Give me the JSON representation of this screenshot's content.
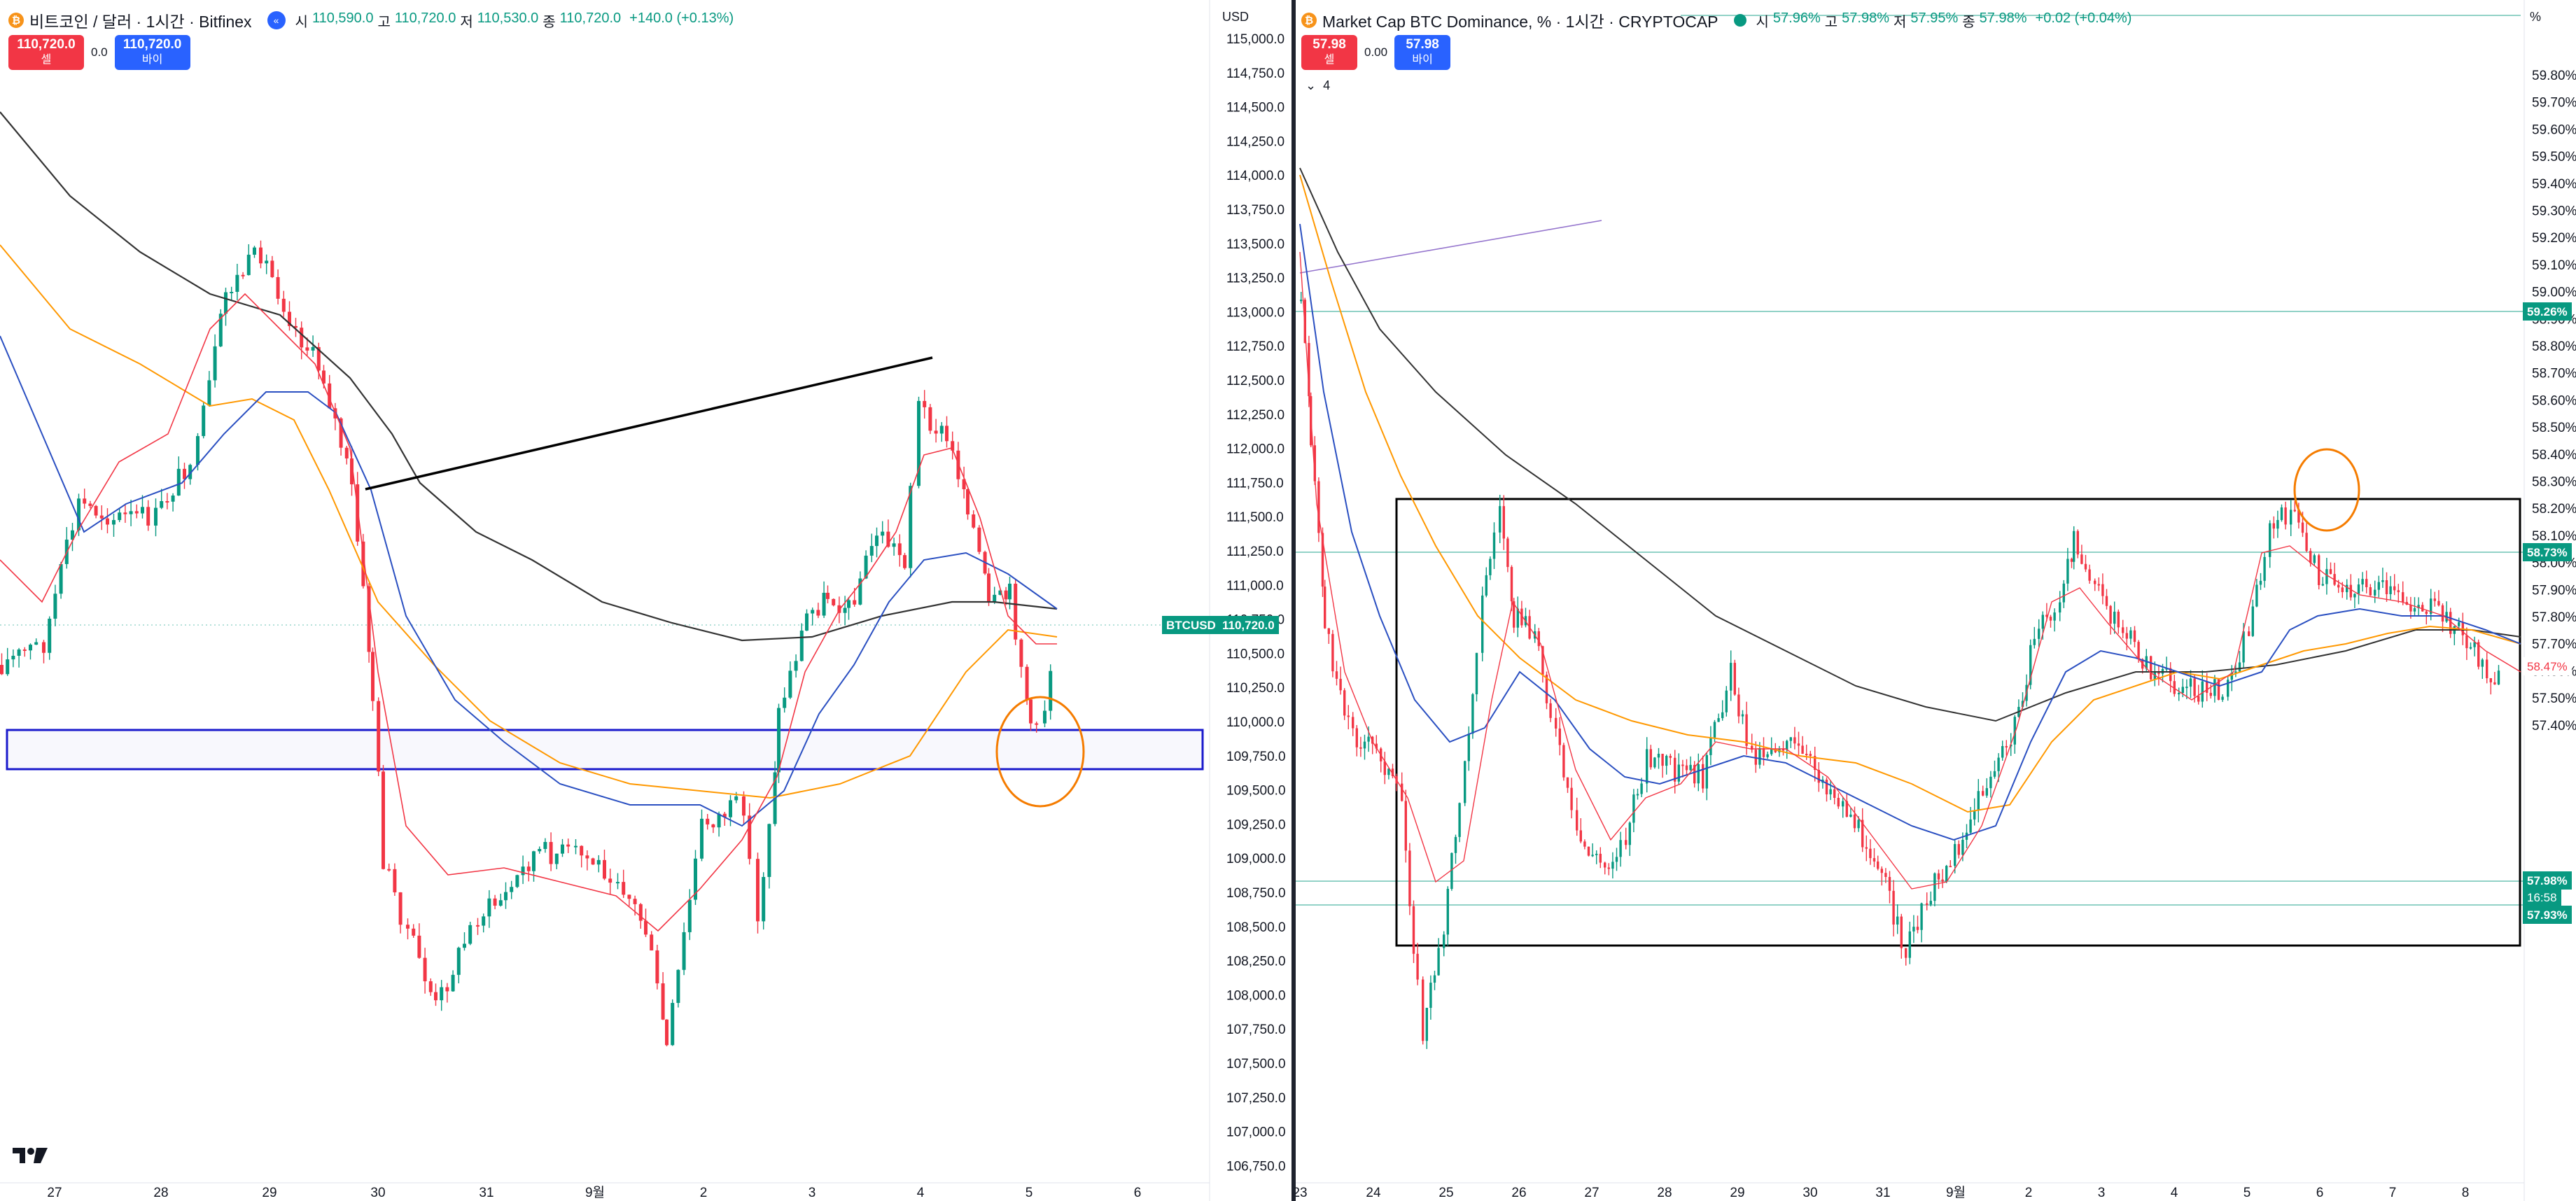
{
  "left": {
    "title": "비트코인 / 달러 · 1시간 · Bitfinex",
    "ohlc": {
      "open_label": "시",
      "open": "110,590.0",
      "high_label": "고",
      "high": "110,720.0",
      "low_label": "저",
      "low": "110,530.0",
      "close_label": "종",
      "close": "110,720.0",
      "change": "+140.0 (+0.13%)"
    },
    "sell": {
      "price": "110,720.0",
      "label": "셀"
    },
    "buy": {
      "price": "110,720.0",
      "label": "바이"
    },
    "spread": "0.0",
    "currency": "USD",
    "price_ticks": [
      "115,000.0",
      "114,750.0",
      "114,500.0",
      "114,250.0",
      "114,000.0",
      "113,750.0",
      "113,500.0",
      "113,250.0",
      "113,000.0",
      "112,750.0",
      "112,500.0",
      "112,250.0",
      "112,000.0",
      "111,750.0",
      "111,500.0",
      "111,250.0",
      "111,000.0",
      "110,750.0",
      "110,500.0",
      "110,250.0",
      "110,000.0",
      "109,750.0",
      "109,500.0",
      "109,250.0",
      "109,000.0",
      "108,750.0",
      "108,500.0",
      "108,250.0",
      "108,000.0",
      "107,750.0",
      "107,500.0",
      "107,250.0",
      "107,000.0",
      "106,750.0"
    ],
    "time_ticks": [
      "27",
      "28",
      "29",
      "30",
      "31",
      "9월",
      "2",
      "3",
      "4",
      "5",
      "6"
    ],
    "symbol_tag": "BTCUSD",
    "last_price_tag": "110,720.0"
  },
  "right": {
    "title": "Market Cap BTC Dominance, % · 1시간 · CRYPTOCAP",
    "ohlc": {
      "open_label": "시",
      "open": "57.96%",
      "high_label": "고",
      "high": "57.98%",
      "low_label": "저",
      "low": "57.95%",
      "close_label": "종",
      "close": "57.98%",
      "change": "+0.02 (+0.04%)"
    },
    "sell": {
      "price": "57.98",
      "label": "셀"
    },
    "buy": {
      "price": "57.98",
      "label": "바이"
    },
    "spread": "0.00",
    "indicator_count": "4",
    "unit": "%",
    "pct_ticks": [
      "59.80%",
      "59.70%",
      "59.60%",
      "59.50%",
      "59.40%",
      "59.30%",
      "59.20%",
      "59.10%",
      "59.00%",
      "58.90%",
      "58.80%",
      "58.70%",
      "58.60%",
      "58.50%",
      "58.40%",
      "58.30%",
      "58.20%",
      "58.10%",
      "58.00%",
      "57.90%",
      "57.80%",
      "57.70%",
      "57.60%",
      "57.50%",
      "57.40%"
    ],
    "time_ticks": [
      "23",
      "24",
      "25",
      "26",
      "27",
      "28",
      "29",
      "30",
      "31",
      "9월",
      "2",
      "3",
      "4",
      "5",
      "6",
      "7",
      "8"
    ],
    "tags": {
      "level1": "59.26%",
      "level2": "58.73%",
      "level3": "58.47%",
      "last": "57.98%",
      "countdown": "16:58",
      "level4": "57.93%"
    }
  },
  "colors": {
    "up": "#089981",
    "down": "#f23645",
    "ma_red": "#f23645",
    "ma_blue": "#2a4fc1",
    "ma_orange": "#ff9800",
    "ma_black": "#333333",
    "zone_blue": "#1a1acc",
    "circle_orange": "#f57c00",
    "level_green": "#089981"
  }
}
